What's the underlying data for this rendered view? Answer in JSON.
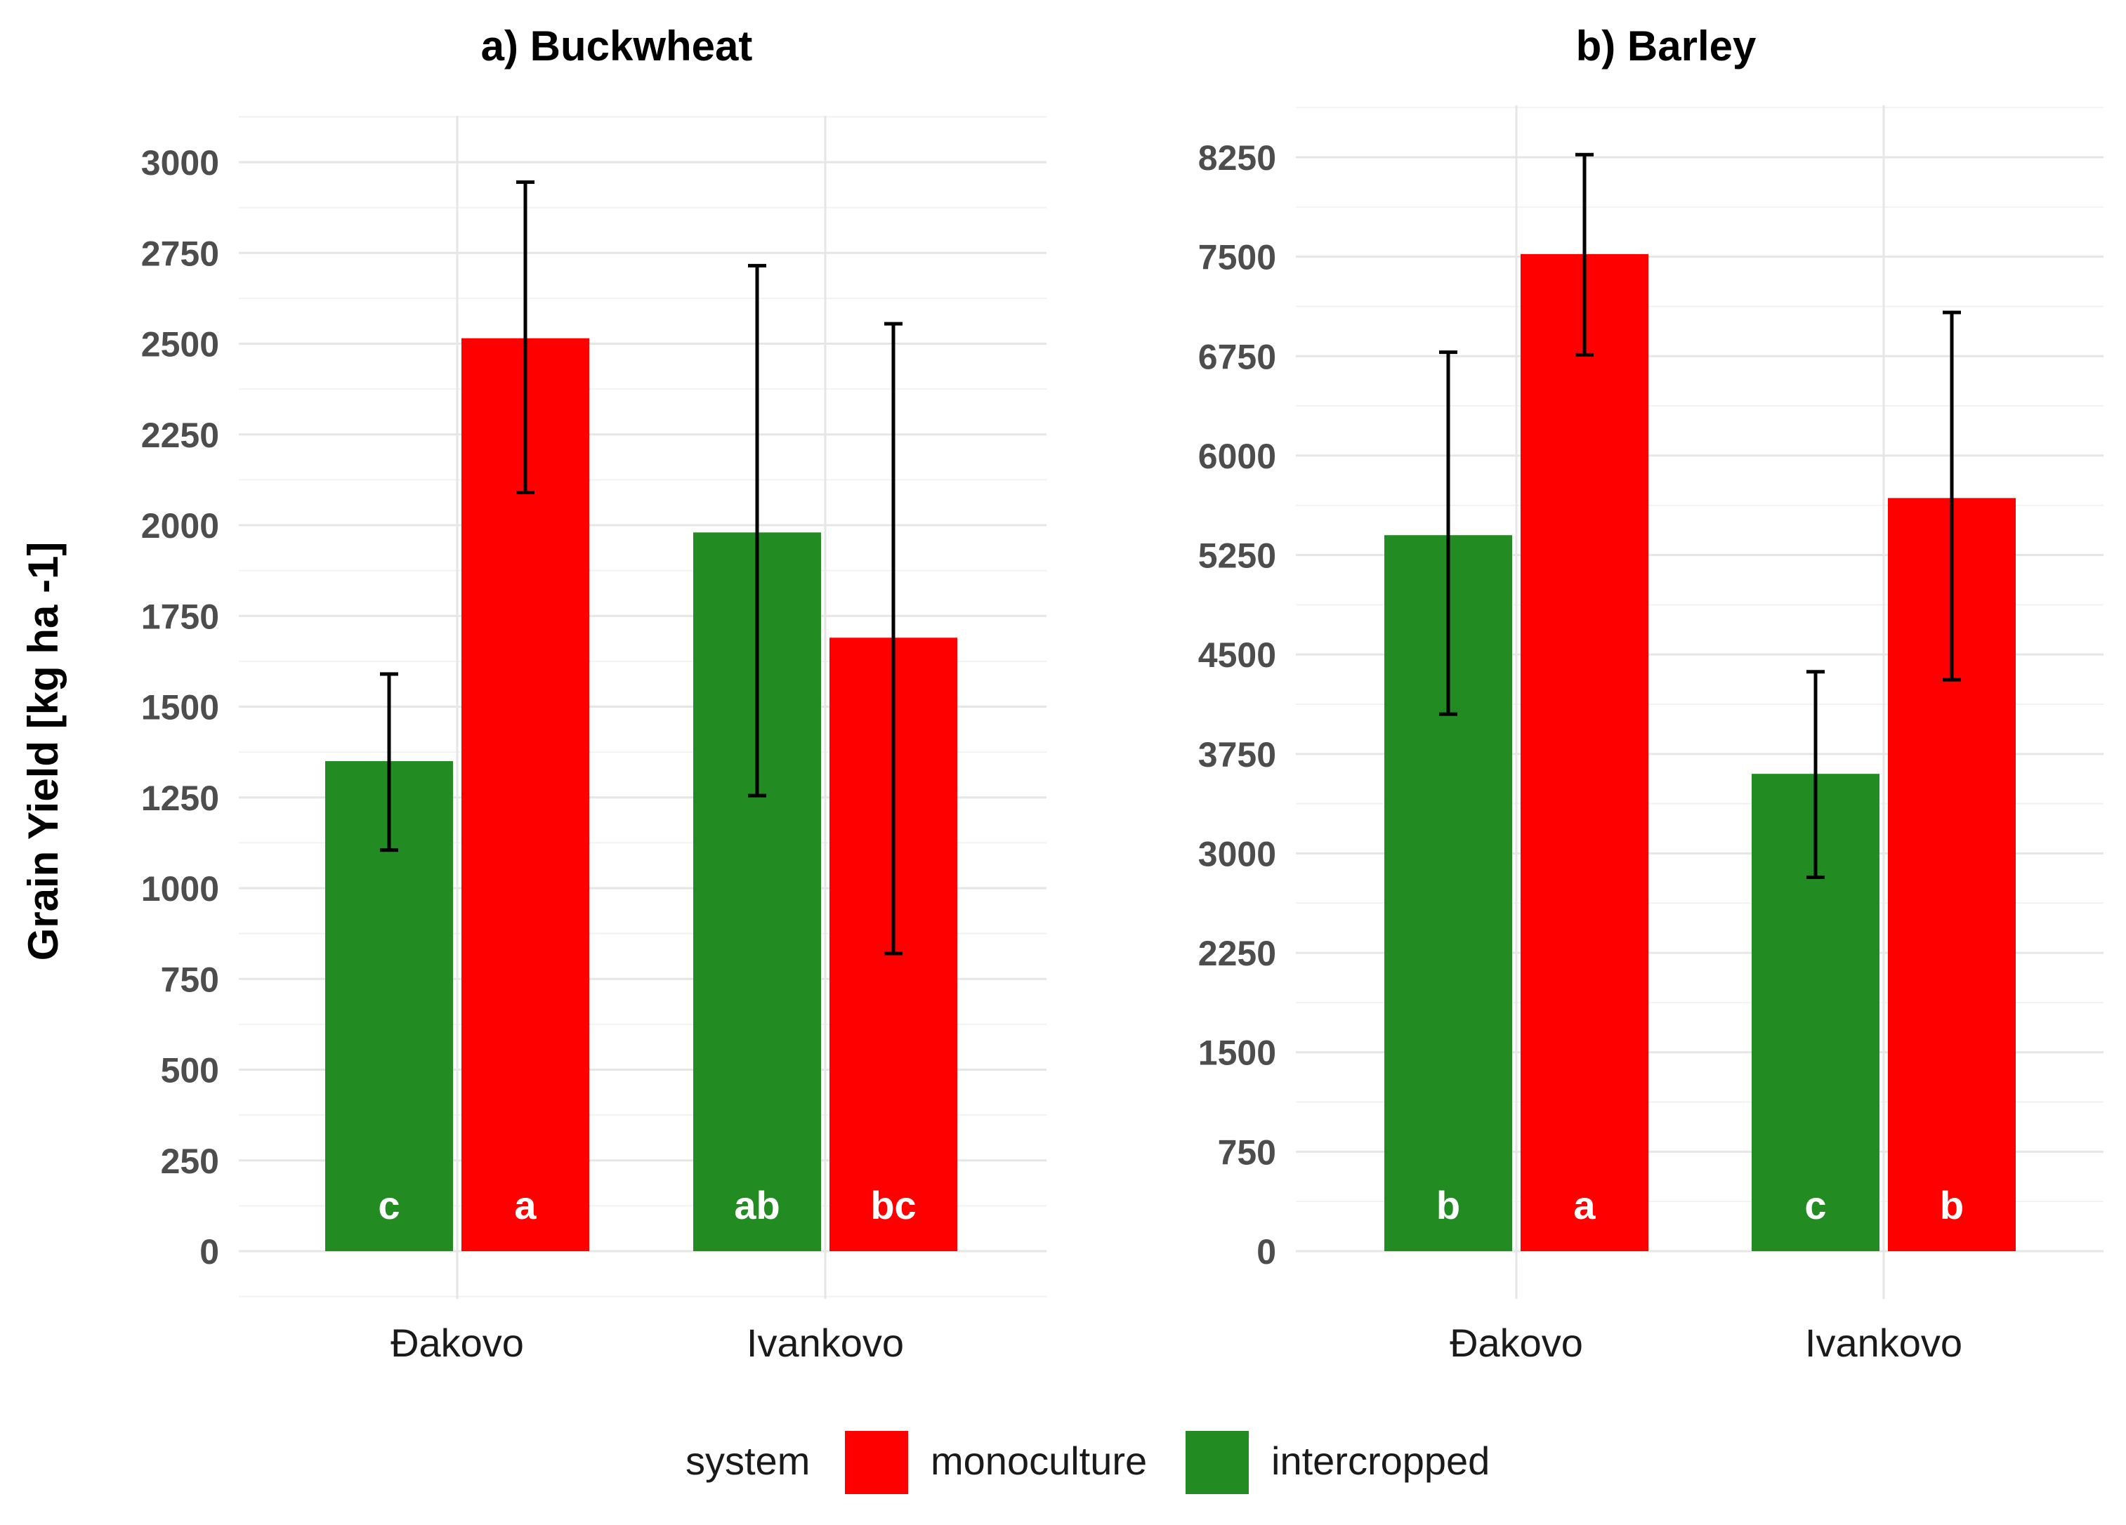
{
  "chart_data": [
    {
      "type": "bar",
      "title": "a) Buckwheat",
      "xlabel": "",
      "ylabel": "Grain Yield [kg ha -1]",
      "categories": [
        "Đakovo",
        "Ivankovo"
      ],
      "ylim": [
        0,
        3000
      ],
      "yticks": [
        0,
        250,
        500,
        750,
        1000,
        1250,
        1500,
        1750,
        2000,
        2250,
        2500,
        2750,
        3000
      ],
      "series": [
        {
          "name": "intercropped",
          "color": "#228B22",
          "values": [
            1350,
            1980
          ],
          "error_low": [
            1105,
            1255
          ],
          "error_high": [
            1590,
            2715
          ],
          "labels": [
            "c",
            "ab"
          ]
        },
        {
          "name": "monoculture",
          "color": "#FF0000",
          "values": [
            2515,
            1690
          ],
          "error_low": [
            2090,
            820
          ],
          "error_high": [
            2945,
            2555
          ],
          "labels": [
            "a",
            "bc"
          ]
        }
      ]
    },
    {
      "type": "bar",
      "title": "b) Barley",
      "xlabel": "",
      "ylabel": "",
      "categories": [
        "Đakovo",
        "Ivankovo"
      ],
      "ylim": [
        0,
        8250
      ],
      "yticks": [
        0,
        750,
        1500,
        2250,
        3000,
        3750,
        4500,
        5250,
        6000,
        6750,
        7500,
        8250
      ],
      "series": [
        {
          "name": "intercropped",
          "color": "#228B22",
          "values": [
            5400,
            3600
          ],
          "error_low": [
            4050,
            2820
          ],
          "error_high": [
            6780,
            4370
          ],
          "labels": [
            "b",
            "c"
          ]
        },
        {
          "name": "monoculture",
          "color": "#FF0000",
          "values": [
            7520,
            5680
          ],
          "error_low": [
            6760,
            4310
          ],
          "error_high": [
            8270,
            7080
          ],
          "labels": [
            "a",
            "b"
          ]
        }
      ]
    }
  ],
  "legend": {
    "title": "system",
    "entries": [
      {
        "label": "monoculture",
        "color": "#FF0000"
      },
      {
        "label": "intercropped",
        "color": "#228B22"
      }
    ]
  }
}
